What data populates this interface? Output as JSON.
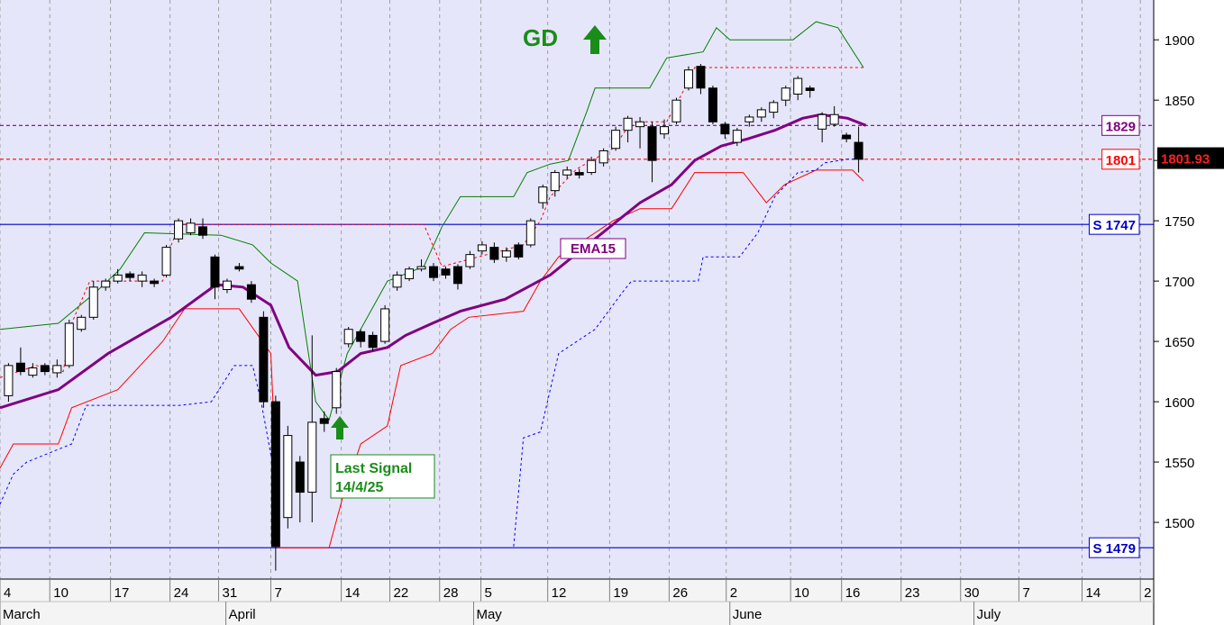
{
  "chart_data": {
    "type": "candlestick",
    "xlim": [
      0,
      95
    ],
    "ylim": [
      1453,
      1933
    ],
    "yticks": [
      1500,
      1550,
      1600,
      1650,
      1700,
      1750,
      1800,
      1850,
      1900
    ],
    "xticks": [
      {
        "value": 0,
        "label": "4"
      },
      {
        "value": 4.1,
        "label": "10"
      },
      {
        "value": 9.1,
        "label": "17"
      },
      {
        "value": 14,
        "label": "24"
      },
      {
        "value": 18,
        "label": "31"
      },
      {
        "value": 22.3,
        "label": "7"
      },
      {
        "value": 28.1,
        "label": "14"
      },
      {
        "value": 32.1,
        "label": "22"
      },
      {
        "value": 36.2,
        "label": "28"
      },
      {
        "value": 39.6,
        "label": "5"
      },
      {
        "value": 45.1,
        "label": "12"
      },
      {
        "value": 50.2,
        "label": "19"
      },
      {
        "value": 55.1,
        "label": "26"
      },
      {
        "value": 59.8,
        "label": "2"
      },
      {
        "value": 65.1,
        "label": "10"
      },
      {
        "value": 69.3,
        "label": "16"
      },
      {
        "value": 74.2,
        "label": "23"
      },
      {
        "value": 79.1,
        "label": "30"
      },
      {
        "value": 83.9,
        "label": "7"
      },
      {
        "value": 89.1,
        "label": "14"
      },
      {
        "value": 93.9,
        "label": "2"
      }
    ],
    "months": [
      {
        "value": 0,
        "label": "March"
      },
      {
        "value": 18.6,
        "label": "April"
      },
      {
        "value": 39,
        "label": "May"
      },
      {
        "value": 60.1,
        "label": "June"
      },
      {
        "value": 80.2,
        "label": "July"
      }
    ],
    "grid": true,
    "candles": {
      "x": [
        0.7,
        1.7,
        2.7,
        3.7,
        4.7,
        5.7,
        6.7,
        7.7,
        8.7,
        9.7,
        10.7,
        11.7,
        12.7,
        13.7,
        14.7,
        15.7,
        16.7,
        17.7,
        18.7,
        19.7,
        20.7,
        21.7,
        22.7,
        23.7,
        24.7,
        25.7,
        26.7,
        27.7,
        28.7,
        29.7,
        30.7,
        31.7,
        32.7,
        33.7,
        34.7,
        35.7,
        36.7,
        37.7,
        38.7,
        39.7,
        40.7,
        41.7,
        42.7,
        43.7,
        44.7,
        45.7,
        46.7,
        47.7,
        48.7,
        49.7,
        50.7,
        51.7,
        52.7,
        53.7,
        54.7,
        55.7,
        56.7,
        57.7,
        58.7,
        59.7,
        60.7,
        61.7,
        62.7,
        63.7,
        64.7,
        65.7,
        66.7,
        67.7,
        68.7,
        69.7,
        70.7
      ],
      "open": [
        1605,
        1632,
        1622,
        1630,
        1624,
        1630,
        1660,
        1670,
        1695,
        1700,
        1706,
        1700,
        1700,
        1705,
        1735,
        1740,
        1745,
        1720,
        1693,
        1712,
        1697,
        1670,
        1600,
        1504,
        1550,
        1525,
        1586,
        1595,
        1648,
        1658,
        1655,
        1650,
        1695,
        1702,
        1710,
        1712,
        1710,
        1712,
        1712,
        1725,
        1728,
        1720,
        1730,
        1730,
        1765,
        1775,
        1788,
        1790,
        1790,
        1798,
        1810,
        1825,
        1828,
        1828,
        1822,
        1832,
        1860,
        1878,
        1860,
        1830,
        1815,
        1832,
        1836,
        1840,
        1850,
        1855,
        1860,
        1826,
        1830,
        1821,
        1815
      ],
      "high": [
        1632,
        1645,
        1632,
        1632,
        1635,
        1668,
        1672,
        1700,
        1702,
        1710,
        1708,
        1708,
        1702,
        1730,
        1752,
        1752,
        1752,
        1722,
        1702,
        1715,
        1700,
        1675,
        1605,
        1580,
        1555,
        1655,
        1592,
        1628,
        1662,
        1660,
        1658,
        1680,
        1708,
        1712,
        1718,
        1715,
        1712,
        1714,
        1725,
        1733,
        1732,
        1728,
        1732,
        1752,
        1780,
        1792,
        1795,
        1793,
        1803,
        1810,
        1828,
        1837,
        1836,
        1832,
        1834,
        1852,
        1878,
        1880,
        1862,
        1832,
        1827,
        1838,
        1844,
        1850,
        1862,
        1870,
        1862,
        1840,
        1845,
        1823,
        1828
      ],
      "low": [
        1600,
        1622,
        1620,
        1622,
        1620,
        1628,
        1658,
        1668,
        1692,
        1698,
        1700,
        1695,
        1695,
        1703,
        1732,
        1738,
        1735,
        1685,
        1690,
        1708,
        1682,
        1595,
        1460,
        1495,
        1500,
        1500,
        1575,
        1590,
        1645,
        1645,
        1642,
        1648,
        1692,
        1700,
        1708,
        1700,
        1702,
        1693,
        1710,
        1722,
        1715,
        1716,
        1718,
        1728,
        1760,
        1770,
        1785,
        1785,
        1788,
        1795,
        1808,
        1815,
        1810,
        1782,
        1818,
        1830,
        1858,
        1855,
        1830,
        1818,
        1812,
        1828,
        1832,
        1835,
        1845,
        1850,
        1852,
        1815,
        1828,
        1815,
        1790
      ],
      "close": [
        1630,
        1625,
        1628,
        1625,
        1630,
        1665,
        1670,
        1695,
        1700,
        1705,
        1703,
        1705,
        1698,
        1728,
        1750,
        1748,
        1738,
        1695,
        1700,
        1710,
        1685,
        1600,
        1480,
        1572,
        1525,
        1583,
        1582,
        1625,
        1660,
        1650,
        1645,
        1677,
        1705,
        1710,
        1712,
        1703,
        1705,
        1698,
        1722,
        1730,
        1718,
        1725,
        1720,
        1750,
        1778,
        1790,
        1792,
        1788,
        1800,
        1808,
        1825,
        1835,
        1832,
        1800,
        1828,
        1850,
        1875,
        1860,
        1832,
        1822,
        1825,
        1836,
        1842,
        1848,
        1860,
        1868,
        1858,
        1838,
        1838,
        1818,
        1801
      ]
    },
    "lines": [
      {
        "color": "#008000",
        "dashed": false,
        "width": 1,
        "x": [
          0,
          4.8,
          7.8,
          9.9,
          11.9,
          18.2,
          20.8,
          22.3,
          24.5,
          26,
          27.1,
          28.6,
          31.9,
          34.9,
          36.4,
          37.9,
          42.3,
          43.4,
          45.3,
          46.8,
          48.3,
          49,
          53.5,
          54.9,
          57.9,
          59,
          60.1,
          65.3,
          67.2,
          69,
          71.1
        ],
        "values": [
          1660,
          1665,
          1690,
          1710,
          1740,
          1738,
          1730,
          1715,
          1700,
          1600,
          1585,
          1640,
          1700,
          1712,
          1745,
          1770,
          1770,
          1790,
          1797,
          1800,
          1840,
          1860,
          1860,
          1885,
          1890,
          1910,
          1900,
          1900,
          1915,
          1910,
          1877
        ]
      },
      {
        "color": "#ff0000",
        "dashed": false,
        "width": 1,
        "x": [
          0,
          1.1,
          4.8,
          5.9,
          9.7,
          13.4,
          15.2,
          19.7,
          22.3,
          23,
          27.1,
          28.2,
          29.7,
          31.9,
          33,
          35.6,
          37.1,
          38.6,
          43.1,
          44.5,
          46,
          50.5,
          52.7,
          55.3,
          57.2,
          61.2,
          63.1,
          64.6,
          67.2,
          70.2,
          71.1
        ],
        "values": [
          1545,
          1565,
          1565,
          1595,
          1610,
          1650,
          1677,
          1677,
          1640,
          1479,
          1479,
          1520,
          1565,
          1580,
          1630,
          1640,
          1660,
          1670,
          1675,
          1700,
          1720,
          1750,
          1760,
          1760,
          1790,
          1790,
          1765,
          1780,
          1792,
          1792,
          1783
        ]
      },
      {
        "color": "#ff0000",
        "dashed": true,
        "width": 1,
        "x": [
          0,
          3,
          5.2,
          5.9,
          7.4,
          13.4,
          14.1,
          14.8,
          34.9,
          36.4,
          43.1,
          44.5,
          45.3,
          47.5,
          50.5,
          52,
          54.9,
          56.4,
          57.2,
          71.1
        ],
        "values": [
          1620,
          1630,
          1625,
          1665,
          1700,
          1700,
          1730,
          1747,
          1747,
          1712,
          1730,
          1750,
          1770,
          1793,
          1810,
          1832,
          1832,
          1860,
          1877,
          1877
        ]
      },
      {
        "color": "#0000ff",
        "dashed": true,
        "width": 1,
        "x": [
          0,
          1.1,
          2.2,
          5.9,
          7.1,
          14.8,
          17.4,
          19.3,
          20.8,
          21.5,
          22.6,
          null,
          42.3,
          43.1,
          44.5,
          46,
          49,
          51.2,
          52,
          57.5,
          57.9,
          60.9,
          62.4,
          63.8,
          65.7,
          67.2,
          67.9,
          69.8,
          71.1
        ],
        "values": [
          1515,
          1540,
          1550,
          1565,
          1597,
          1597,
          1600,
          1630,
          1630,
          1600,
          1540,
          null,
          1480,
          1570,
          1575,
          1640,
          1660,
          1690,
          1700,
          1700,
          1720,
          1720,
          1740,
          1770,
          1790,
          1792,
          1798,
          1801,
          1801
        ]
      },
      {
        "color": "#800080",
        "dashed": false,
        "width": 3,
        "x": [
          0,
          4.8,
          8.9,
          14.1,
          17.8,
          20,
          22.3,
          23.8,
          26,
          27.8,
          29.7,
          31.9,
          33.4,
          35.6,
          37.9,
          41.6,
          45.3,
          49,
          52.7,
          55.3,
          57.2,
          59.4,
          61.6,
          63.8,
          66.1,
          67.6,
          69.8,
          71.3
        ],
        "values": [
          1595,
          1610,
          1640,
          1670,
          1697,
          1695,
          1680,
          1645,
          1622,
          1625,
          1640,
          1645,
          1655,
          1665,
          1675,
          1685,
          1705,
          1735,
          1765,
          1780,
          1800,
          1812,
          1818,
          1825,
          1835,
          1838,
          1835,
          1829
        ]
      }
    ],
    "levels": [
      {
        "value": 1829,
        "label": "1829",
        "color": "#800080",
        "dashed": true
      },
      {
        "value": 1801,
        "label": "1801",
        "color": "#ff0000",
        "dashed": true
      },
      {
        "value": 1747,
        "label": "S 1747",
        "color": "#0000cc",
        "dashed": false
      },
      {
        "value": 1479,
        "label": "S 1479",
        "color": "#0000cc",
        "dashed": false
      }
    ],
    "last_price": 1801.93,
    "signal_title": "GD",
    "ema_label": "EMA15",
    "signal_label": [
      "Last Signal",
      "14/4/25"
    ]
  }
}
